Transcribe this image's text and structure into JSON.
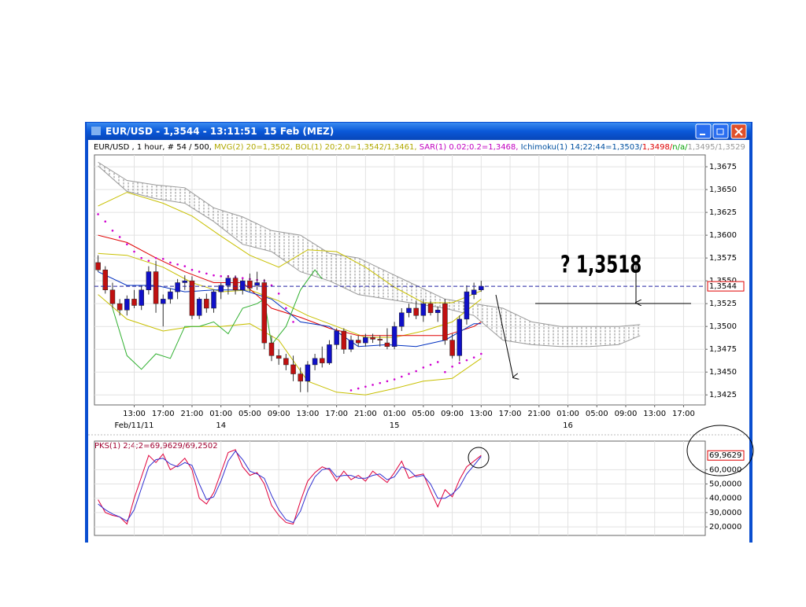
{
  "window": {
    "title": "EUR/USD - 1,3544 - 13:11:51  15 Feb (MEZ)"
  },
  "annotation": "? 1,3518",
  "chart_data": [
    {
      "type": "candlestick",
      "legend_items": [
        {
          "text": "EUR/USD , 1 hour, # 54 / 500, ",
          "color": "#000000"
        },
        {
          "text": "MVG(2) 20=1,3502, ",
          "color": "#b0a800"
        },
        {
          "text": "BOL(1) 20;2.0=1,3542/1,3461, ",
          "color": "#b0a800"
        },
        {
          "text": "SAR(1) 0.02;0.2=1,3468, ",
          "color": "#c000c0"
        },
        {
          "text": "Ichimoku(1) 14;22;44=1,3503/",
          "color": "#0050a0"
        },
        {
          "text": "1,3498/",
          "color": "#dd0000"
        },
        {
          "text": "n/a/",
          "color": "#00a000"
        },
        {
          "text": "1,3495/1,3529",
          "color": "#999999"
        }
      ],
      "x": [
        0,
        1,
        2,
        3,
        4,
        5,
        6,
        7,
        8,
        9,
        10,
        11,
        12,
        13,
        14,
        15,
        16,
        17,
        18,
        19,
        20,
        21,
        22,
        23,
        24,
        25,
        26,
        27,
        28,
        29,
        30,
        31,
        32,
        33,
        34,
        35,
        36,
        37,
        38,
        39,
        40,
        41,
        42,
        43,
        44,
        45,
        46,
        47,
        48,
        49,
        50,
        51,
        52,
        53
      ],
      "open": [
        1.357,
        1.3562,
        1.354,
        1.3525,
        1.3518,
        1.353,
        1.3523,
        1.354,
        1.356,
        1.3525,
        1.353,
        1.3538,
        1.3548,
        1.355,
        1.3512,
        1.353,
        1.352,
        1.3538,
        1.3545,
        1.3553,
        1.354,
        1.355,
        1.3545,
        1.3548,
        1.3482,
        1.3468,
        1.3465,
        1.3458,
        1.3448,
        1.344,
        1.3458,
        1.3465,
        1.346,
        1.348,
        1.3495,
        1.3475,
        1.3485,
        1.3482,
        1.3488,
        1.3486,
        1.3482,
        1.3478,
        1.35,
        1.3515,
        1.352,
        1.3512,
        1.3525,
        1.3515,
        1.3525,
        1.3485,
        1.3468,
        1.3508,
        1.3535,
        1.354
      ],
      "high": [
        1.3578,
        1.3566,
        1.3548,
        1.353,
        1.3534,
        1.354,
        1.3545,
        1.3566,
        1.3572,
        1.3535,
        1.3542,
        1.3552,
        1.3556,
        1.3555,
        1.3532,
        1.3536,
        1.354,
        1.3548,
        1.3556,
        1.3556,
        1.3552,
        1.3558,
        1.356,
        1.3552,
        1.349,
        1.3475,
        1.347,
        1.3468,
        1.3455,
        1.3462,
        1.347,
        1.3478,
        1.3485,
        1.3498,
        1.3498,
        1.349,
        1.349,
        1.3492,
        1.3492,
        1.349,
        1.3498,
        1.3505,
        1.352,
        1.3525,
        1.3528,
        1.353,
        1.3528,
        1.3522,
        1.353,
        1.3492,
        1.3512,
        1.3545,
        1.3548,
        1.355
      ],
      "low": [
        1.356,
        1.3536,
        1.352,
        1.3512,
        1.3512,
        1.352,
        1.3518,
        1.3535,
        1.3515,
        1.35,
        1.3525,
        1.353,
        1.354,
        1.3508,
        1.3508,
        1.3515,
        1.3515,
        1.353,
        1.3535,
        1.3535,
        1.3535,
        1.3538,
        1.354,
        1.3475,
        1.3462,
        1.3458,
        1.3452,
        1.344,
        1.3428,
        1.3428,
        1.3452,
        1.3455,
        1.3458,
        1.3475,
        1.347,
        1.3472,
        1.3478,
        1.3478,
        1.3482,
        1.3478,
        1.3475,
        1.3475,
        1.3495,
        1.351,
        1.3508,
        1.3505,
        1.3512,
        1.3505,
        1.348,
        1.3465,
        1.3462,
        1.3502,
        1.353,
        1.3538
      ],
      "close": [
        1.3562,
        1.354,
        1.3525,
        1.3518,
        1.353,
        1.3523,
        1.354,
        1.356,
        1.3525,
        1.353,
        1.3538,
        1.3548,
        1.355,
        1.3512,
        1.353,
        1.352,
        1.3538,
        1.3545,
        1.3553,
        1.354,
        1.355,
        1.3542,
        1.3548,
        1.3482,
        1.3468,
        1.3465,
        1.3458,
        1.3448,
        1.344,
        1.3458,
        1.3465,
        1.346,
        1.348,
        1.3495,
        1.3475,
        1.3485,
        1.3482,
        1.3488,
        1.3486,
        1.3485,
        1.3478,
        1.35,
        1.3515,
        1.352,
        1.3512,
        1.3525,
        1.3515,
        1.3518,
        1.3485,
        1.3468,
        1.3508,
        1.3538,
        1.354,
        1.3544
      ],
      "up_color": "#1010c8",
      "down_color": "#c01010",
      "cloud": {
        "color": "#999999",
        "x": [
          0,
          4,
          8,
          12,
          16,
          20,
          24,
          28,
          32,
          36,
          40,
          44,
          48,
          52,
          56,
          60,
          64,
          68,
          72,
          75
        ],
        "upper": [
          1.368,
          1.366,
          1.3655,
          1.3652,
          1.363,
          1.362,
          1.3605,
          1.36,
          1.358,
          1.3575,
          1.356,
          1.3545,
          1.353,
          1.3525,
          1.352,
          1.3505,
          1.35,
          1.35,
          1.35,
          1.3502
        ],
        "lower": [
          1.3676,
          1.3648,
          1.364,
          1.3635,
          1.3615,
          1.359,
          1.3582,
          1.356,
          1.355,
          1.3535,
          1.353,
          1.3525,
          1.352,
          1.3512,
          1.3485,
          1.348,
          1.3478,
          1.3478,
          1.348,
          1.349
        ]
      },
      "overlays": [
        {
          "style": "line",
          "color": "#c8c000",
          "x": [
            0,
            4,
            9,
            13,
            17,
            21,
            25,
            29,
            33,
            37,
            41,
            45,
            49,
            53
          ],
          "values": [
            1.3632,
            1.3647,
            1.3635,
            1.3621,
            1.3599,
            1.3578,
            1.3565,
            1.3584,
            1.3582,
            1.3565,
            1.3543,
            1.3526,
            1.3526,
            1.3539
          ]
        },
        {
          "style": "line",
          "color": "#c8c000",
          "x": [
            0,
            4,
            9,
            13,
            17,
            21,
            25,
            29,
            33,
            37,
            41,
            45,
            49,
            53
          ],
          "values": [
            1.358,
            1.3578,
            1.3565,
            1.3548,
            1.3538,
            1.354,
            1.3528,
            1.3512,
            1.35,
            1.3488,
            1.3488,
            1.3495,
            1.3505,
            1.353
          ]
        },
        {
          "style": "line",
          "color": "#c8c000",
          "x": [
            0,
            4,
            9,
            13,
            17,
            21,
            25,
            29,
            33,
            37,
            41,
            45,
            49,
            53
          ],
          "values": [
            1.3535,
            1.3508,
            1.3495,
            1.35,
            1.35,
            1.3503,
            1.3485,
            1.344,
            1.3428,
            1.3425,
            1.3432,
            1.344,
            1.3443,
            1.3465
          ]
        },
        {
          "style": "line",
          "color": "#e00000",
          "x": [
            0,
            4,
            8,
            12,
            16,
            20,
            24,
            28,
            32,
            36,
            40,
            44,
            48,
            52,
            53
          ],
          "values": [
            1.36,
            1.3592,
            1.3575,
            1.356,
            1.3548,
            1.3548,
            1.352,
            1.351,
            1.3498,
            1.349,
            1.349,
            1.349,
            1.349,
            1.35,
            1.3505
          ]
        },
        {
          "style": "line",
          "color": "#0030c0",
          "x": [
            0,
            4,
            8,
            12,
            16,
            20,
            24,
            28,
            32,
            36,
            40,
            44,
            48,
            52,
            53
          ],
          "values": [
            1.356,
            1.3545,
            1.3545,
            1.3538,
            1.354,
            1.354,
            1.353,
            1.3505,
            1.35,
            1.3478,
            1.348,
            1.3478,
            1.3485,
            1.3503,
            1.3503
          ]
        },
        {
          "style": "line",
          "color": "#30b030",
          "x": [
            2,
            4,
            6,
            8,
            10,
            12,
            14,
            16,
            18,
            20,
            22,
            23,
            24,
            26,
            28,
            30,
            31
          ],
          "values": [
            1.352,
            1.3468,
            1.3453,
            1.347,
            1.3465,
            1.35,
            1.35,
            1.3505,
            1.3492,
            1.352,
            1.3525,
            1.353,
            1.348,
            1.35,
            1.354,
            1.3562,
            1.3552
          ]
        },
        {
          "style": "dots",
          "color": "#d000d0",
          "x": [
            0,
            1,
            2,
            3,
            4,
            5,
            6,
            7,
            8,
            9,
            10,
            11,
            12,
            13,
            14,
            15,
            16,
            17,
            18,
            19,
            20,
            21,
            22,
            23,
            24,
            25,
            26,
            27,
            35,
            36,
            37,
            38,
            39,
            40,
            41,
            42,
            43,
            44,
            45,
            46,
            47,
            48,
            49,
            50,
            51,
            52,
            53
          ],
          "values": [
            1.3623,
            1.3615,
            1.3605,
            1.3598,
            1.359,
            1.3582,
            1.3575,
            1.3572,
            1.3575,
            1.3574,
            1.357,
            1.3568,
            1.3566,
            1.3562,
            1.356,
            1.3558,
            1.3556,
            1.3555,
            1.3555,
            1.3554,
            1.3553,
            1.3552,
            1.3551,
            1.355,
            1.3545,
            1.3536,
            1.352,
            1.3505,
            1.343,
            1.3432,
            1.3434,
            1.3436,
            1.3438,
            1.344,
            1.3442,
            1.3445,
            1.3448,
            1.3451,
            1.3455,
            1.3458,
            1.3461,
            1.345,
            1.3456,
            1.346,
            1.3463,
            1.3466,
            1.347
          ]
        }
      ],
      "last_price": {
        "value": 1.3544,
        "label": "1,3544"
      },
      "xlim": [
        -0.5,
        84
      ],
      "xticks": [
        {
          "value": 5,
          "label": "13:00"
        },
        {
          "value": 9,
          "label": "17:00"
        },
        {
          "value": 13,
          "label": "21:00"
        },
        {
          "value": 17,
          "label": "01:00"
        },
        {
          "value": 21,
          "label": "05:00"
        },
        {
          "value": 25,
          "label": "09:00"
        },
        {
          "value": 29,
          "label": "13:00"
        },
        {
          "value": 33,
          "label": "17:00"
        },
        {
          "value": 37,
          "label": "21:00"
        },
        {
          "value": 41,
          "label": "01:00"
        },
        {
          "value": 45,
          "label": "05:00"
        },
        {
          "value": 49,
          "label": "09:00"
        },
        {
          "value": 53,
          "label": "13:00"
        },
        {
          "value": 57,
          "label": "17:00"
        },
        {
          "value": 61,
          "label": "21:00"
        },
        {
          "value": 65,
          "label": "01:00"
        },
        {
          "value": 69,
          "label": "05:00"
        },
        {
          "value": 73,
          "label": "09:00"
        },
        {
          "value": 77,
          "label": "13:00"
        },
        {
          "value": 81,
          "label": "17:00"
        }
      ],
      "date_labels": [
        {
          "value": 5,
          "label": "Feb/11/11"
        },
        {
          "value": 17,
          "label": "14"
        },
        {
          "value": 41,
          "label": "15"
        },
        {
          "value": 65,
          "label": "16"
        }
      ],
      "ylim": [
        1.3414,
        1.3688
      ],
      "yticks": [
        {
          "value": 1.3425,
          "label": "1,3425"
        },
        {
          "value": 1.345,
          "label": "1,3450"
        },
        {
          "value": 1.3475,
          "label": "1,3475"
        },
        {
          "value": 1.35,
          "label": "1,3500"
        },
        {
          "value": 1.3525,
          "label": "1,3525"
        },
        {
          "value": 1.355,
          "label": "1,3550"
        },
        {
          "value": 1.3575,
          "label": "1,3575"
        },
        {
          "value": 1.36,
          "label": "1,3600"
        },
        {
          "value": 1.3625,
          "label": "1,3625"
        },
        {
          "value": 1.365,
          "label": "1,3650"
        },
        {
          "value": 1.3675,
          "label": "1,3675"
        }
      ],
      "grid": true
    },
    {
      "type": "line",
      "title": "PKS(1) 2;4;2=69,9629/69,2502",
      "title_color": "#a00030",
      "x": [
        0,
        1,
        2,
        3,
        4,
        5,
        6,
        7,
        8,
        9,
        10,
        11,
        12,
        13,
        14,
        15,
        16,
        17,
        18,
        19,
        20,
        21,
        22,
        23,
        24,
        25,
        26,
        27,
        28,
        29,
        30,
        31,
        32,
        33,
        34,
        35,
        36,
        37,
        38,
        39,
        40,
        41,
        42,
        43,
        44,
        45,
        46,
        47,
        48,
        49,
        50,
        51,
        52,
        53
      ],
      "series": [
        {
          "color": "#e0003a",
          "values": [
            39,
            30,
            28,
            27,
            22,
            40,
            55,
            70,
            65,
            71,
            60,
            63,
            68,
            60,
            40,
            36,
            44,
            58,
            72,
            74,
            62,
            56,
            58,
            50,
            35,
            28,
            23,
            22,
            38,
            52,
            58,
            62,
            60,
            52,
            59,
            53,
            56,
            52,
            59,
            55,
            51,
            58,
            66,
            54,
            56,
            57,
            45,
            34,
            46,
            41,
            53,
            62,
            66,
            69.9629
          ]
        },
        {
          "color": "#3030d0",
          "values": [
            36,
            32,
            29,
            27,
            24,
            32,
            47,
            62,
            67,
            68,
            64,
            62,
            65,
            63,
            50,
            39,
            41,
            52,
            66,
            73,
            67,
            59,
            57,
            54,
            42,
            32,
            25,
            23,
            31,
            45,
            55,
            60,
            61,
            55,
            56,
            56,
            54,
            54,
            56,
            57,
            53,
            55,
            62,
            60,
            55,
            56,
            50,
            40,
            40,
            43,
            48,
            57,
            63,
            69.2502
          ]
        }
      ],
      "last_price": {
        "value": 69.9629,
        "label": "69,9629"
      },
      "xlim": [
        -0.5,
        84
      ],
      "ylim": [
        14,
        80
      ],
      "yticks": [
        {
          "value": 20,
          "label": "20,0000"
        },
        {
          "value": 30,
          "label": "30,0000"
        },
        {
          "value": 40,
          "label": "40,0000"
        },
        {
          "value": 50,
          "label": "50,0000"
        },
        {
          "value": 60,
          "label": "60,0000"
        }
      ],
      "grid": true
    }
  ]
}
